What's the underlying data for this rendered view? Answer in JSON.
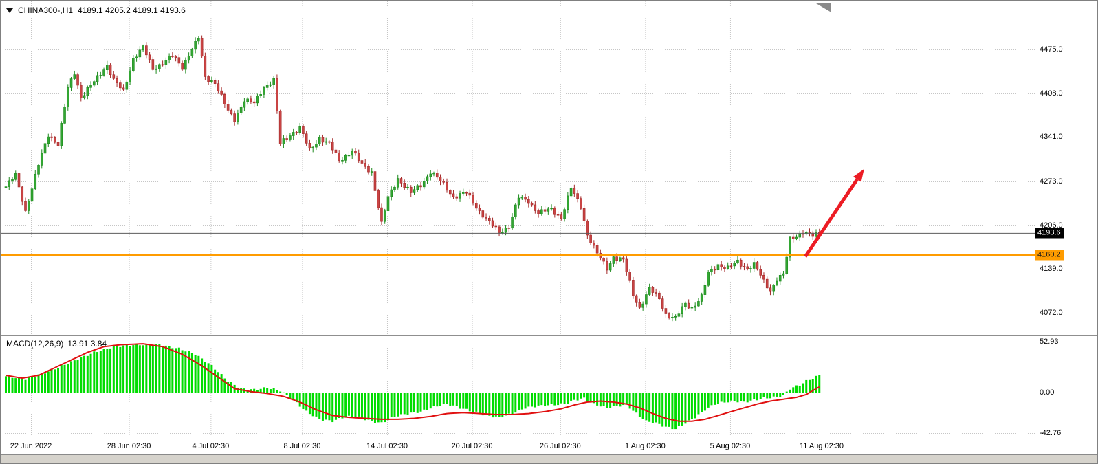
{
  "header": {
    "symbol": "CHINA300-,H1",
    "ohlc": "4189.1 4205.2 4189.1 4193.6"
  },
  "macd": {
    "title": "MACD(12,26,9)",
    "values": "13.91 3.84"
  },
  "levels": {
    "price_tag": "4193.6",
    "support_tag": "4160.2"
  },
  "chart_data": [
    {
      "type": "candlestick",
      "symbol": "CHINA300-,H1",
      "timeframe": "H1",
      "last_bar": {
        "open": 4189.1,
        "high": 4205.2,
        "low": 4189.1,
        "close": 4193.6
      },
      "current_price": 4193.6,
      "support_level": 4160.2,
      "ylim": [
        4037,
        4549
      ],
      "bar_count": 250,
      "y_ticks": [
        {
          "label": "4475.0",
          "value": 4475.0
        },
        {
          "label": "4408.0",
          "value": 4408.0
        },
        {
          "label": "4341.0",
          "value": 4341.0
        },
        {
          "label": "4273.0",
          "value": 4273.0
        },
        {
          "label": "4206.0",
          "value": 4206.0
        },
        {
          "label": "4139.0",
          "value": 4139.0
        },
        {
          "label": "4072.0",
          "value": 4072.0
        }
      ],
      "x_ticks": [
        {
          "label": "22 Jun 2022",
          "index": 8
        },
        {
          "label": "28 Jun 02:30",
          "index": 38
        },
        {
          "label": "4 Jul 02:30",
          "index": 63
        },
        {
          "label": "8 Jul 02:30",
          "index": 91
        },
        {
          "label": "14 Jul 02:30",
          "index": 117
        },
        {
          "label": "20 Jul 02:30",
          "index": 143
        },
        {
          "label": "26 Jul 02:30",
          "index": 170
        },
        {
          "label": "1 Aug 02:30",
          "index": 196
        },
        {
          "label": "5 Aug 02:30",
          "index": 222
        },
        {
          "label": "11 Aug 02:30",
          "index": 250
        }
      ],
      "price_path": [
        [
          0,
          4265
        ],
        [
          3,
          4282
        ],
        [
          6,
          4228
        ],
        [
          10,
          4298
        ],
        [
          13,
          4345
        ],
        [
          16,
          4330
        ],
        [
          19,
          4415
        ],
        [
          21,
          4440
        ],
        [
          23,
          4402
        ],
        [
          27,
          4425
        ],
        [
          31,
          4452
        ],
        [
          33,
          4428
        ],
        [
          36,
          4410
        ],
        [
          39,
          4462
        ],
        [
          42,
          4478
        ],
        [
          45,
          4445
        ],
        [
          48,
          4455
        ],
        [
          51,
          4465
        ],
        [
          54,
          4448
        ],
        [
          56,
          4468
        ],
        [
          59,
          4492
        ],
        [
          61,
          4432
        ],
        [
          64,
          4425
        ],
        [
          68,
          4380
        ],
        [
          70,
          4368
        ],
        [
          73,
          4398
        ],
        [
          76,
          4392
        ],
        [
          79,
          4418
        ],
        [
          82,
          4428
        ],
        [
          84,
          4330
        ],
        [
          87,
          4345
        ],
        [
          90,
          4355
        ],
        [
          93,
          4320
        ],
        [
          96,
          4340
        ],
        [
          99,
          4330
        ],
        [
          102,
          4305
        ],
        [
          106,
          4320
        ],
        [
          109,
          4298
        ],
        [
          112,
          4288
        ],
        [
          115,
          4208
        ],
        [
          117,
          4248
        ],
        [
          120,
          4278
        ],
        [
          124,
          4255
        ],
        [
          127,
          4268
        ],
        [
          130,
          4288
        ],
        [
          134,
          4268
        ],
        [
          137,
          4250
        ],
        [
          141,
          4255
        ],
        [
          145,
          4228
        ],
        [
          148,
          4210
        ],
        [
          151,
          4195
        ],
        [
          154,
          4205
        ],
        [
          157,
          4248
        ],
        [
          160,
          4243
        ],
        [
          163,
          4225
        ],
        [
          167,
          4230
        ],
        [
          170,
          4218
        ],
        [
          173,
          4262
        ],
        [
          176,
          4235
        ],
        [
          178,
          4192
        ],
        [
          181,
          4162
        ],
        [
          184,
          4140
        ],
        [
          186,
          4158
        ],
        [
          189,
          4152
        ],
        [
          192,
          4100
        ],
        [
          194,
          4080
        ],
        [
          197,
          4108
        ],
        [
          200,
          4094
        ],
        [
          202,
          4070
        ],
        [
          205,
          4063
        ],
        [
          208,
          4086
        ],
        [
          210,
          4080
        ],
        [
          213,
          4096
        ],
        [
          215,
          4132
        ],
        [
          218,
          4146
        ],
        [
          221,
          4140
        ],
        [
          224,
          4150
        ],
        [
          227,
          4140
        ],
        [
          229,
          4146
        ],
        [
          232,
          4120
        ],
        [
          234,
          4106
        ],
        [
          236,
          4124
        ],
        [
          238,
          4130
        ],
        [
          240,
          4184
        ],
        [
          242,
          4190
        ],
        [
          244,
          4196
        ],
        [
          247,
          4189
        ],
        [
          249,
          4194
        ]
      ],
      "colors": {
        "up": "#33a633",
        "up_stroke": "#1e8a1e",
        "down": "#c94444",
        "down_stroke": "#a32929",
        "support": "#ff9c00",
        "current": "#5c5c5c",
        "grid": "#c6c6c6"
      },
      "annotation_arrow": {
        "color": "#ec1c24",
        "from_index": 245,
        "from_price": 4158,
        "to_index": 263,
        "to_price": 4292
      }
    },
    {
      "type": "bar",
      "name": "MACD(12,26,9)",
      "macd_value": 13.91,
      "signal_value": 3.84,
      "ylim": [
        -48,
        60
      ],
      "y_ticks": [
        {
          "label": "52.93",
          "value": 52.93
        },
        {
          "label": "0.00",
          "value": 0
        },
        {
          "label": "-42.76",
          "value": -42.76
        }
      ],
      "histogram_path": [
        [
          0,
          17
        ],
        [
          6,
          14
        ],
        [
          13,
          22
        ],
        [
          20,
          32
        ],
        [
          27,
          42
        ],
        [
          33,
          48
        ],
        [
          40,
          50
        ],
        [
          47,
          50
        ],
        [
          53,
          46
        ],
        [
          58,
          40
        ],
        [
          63,
          28
        ],
        [
          68,
          12
        ],
        [
          72,
          4
        ],
        [
          76,
          3
        ],
        [
          80,
          5
        ],
        [
          84,
          2
        ],
        [
          88,
          -8
        ],
        [
          92,
          -20
        ],
        [
          96,
          -28
        ],
        [
          100,
          -30
        ],
        [
          104,
          -25
        ],
        [
          108,
          -26
        ],
        [
          112,
          -30
        ],
        [
          115,
          -32
        ],
        [
          119,
          -25
        ],
        [
          123,
          -22
        ],
        [
          127,
          -20
        ],
        [
          131,
          -15
        ],
        [
          135,
          -12
        ],
        [
          139,
          -16
        ],
        [
          143,
          -20
        ],
        [
          147,
          -24
        ],
        [
          151,
          -26
        ],
        [
          155,
          -22
        ],
        [
          159,
          -16
        ],
        [
          163,
          -14
        ],
        [
          167,
          -13
        ],
        [
          171,
          -12
        ],
        [
          174,
          -8
        ],
        [
          177,
          -6
        ],
        [
          180,
          -12
        ],
        [
          184,
          -16
        ],
        [
          187,
          -14
        ],
        [
          190,
          -13
        ],
        [
          193,
          -22
        ],
        [
          196,
          -30
        ],
        [
          199,
          -32
        ],
        [
          202,
          -36
        ],
        [
          205,
          -38
        ],
        [
          208,
          -32
        ],
        [
          211,
          -26
        ],
        [
          214,
          -18
        ],
        [
          217,
          -12
        ],
        [
          220,
          -10
        ],
        [
          223,
          -9
        ],
        [
          226,
          -10
        ],
        [
          229,
          -8
        ],
        [
          232,
          -6
        ],
        [
          235,
          -5
        ],
        [
          238,
          -3
        ],
        [
          240,
          4
        ],
        [
          243,
          8
        ],
        [
          245,
          12
        ],
        [
          247,
          15
        ],
        [
          249,
          18
        ]
      ],
      "signal_path": [
        [
          0,
          18
        ],
        [
          5,
          15
        ],
        [
          10,
          18
        ],
        [
          15,
          26
        ],
        [
          20,
          34
        ],
        [
          25,
          42
        ],
        [
          30,
          48
        ],
        [
          35,
          50
        ],
        [
          42,
          51
        ],
        [
          48,
          48
        ],
        [
          54,
          40
        ],
        [
          60,
          28
        ],
        [
          65,
          16
        ],
        [
          70,
          4
        ],
        [
          75,
          1
        ],
        [
          80,
          -1
        ],
        [
          85,
          -4
        ],
        [
          90,
          -10
        ],
        [
          95,
          -18
        ],
        [
          100,
          -24
        ],
        [
          105,
          -26
        ],
        [
          110,
          -27
        ],
        [
          115,
          -28
        ],
        [
          120,
          -28
        ],
        [
          125,
          -27
        ],
        [
          130,
          -25
        ],
        [
          135,
          -22
        ],
        [
          140,
          -21
        ],
        [
          145,
          -22
        ],
        [
          150,
          -23
        ],
        [
          155,
          -23
        ],
        [
          160,
          -22
        ],
        [
          165,
          -20
        ],
        [
          170,
          -17
        ],
        [
          174,
          -13
        ],
        [
          178,
          -10
        ],
        [
          182,
          -9
        ],
        [
          186,
          -10
        ],
        [
          190,
          -12
        ],
        [
          194,
          -16
        ],
        [
          198,
          -22
        ],
        [
          202,
          -27
        ],
        [
          206,
          -30
        ],
        [
          210,
          -30
        ],
        [
          214,
          -28
        ],
        [
          218,
          -24
        ],
        [
          222,
          -20
        ],
        [
          226,
          -16
        ],
        [
          230,
          -12
        ],
        [
          234,
          -9
        ],
        [
          238,
          -7
        ],
        [
          242,
          -5
        ],
        [
          245,
          -2
        ],
        [
          247,
          2
        ],
        [
          249,
          6
        ]
      ],
      "colors": {
        "histogram": "#00dc00",
        "signal": "#e01010"
      }
    }
  ]
}
